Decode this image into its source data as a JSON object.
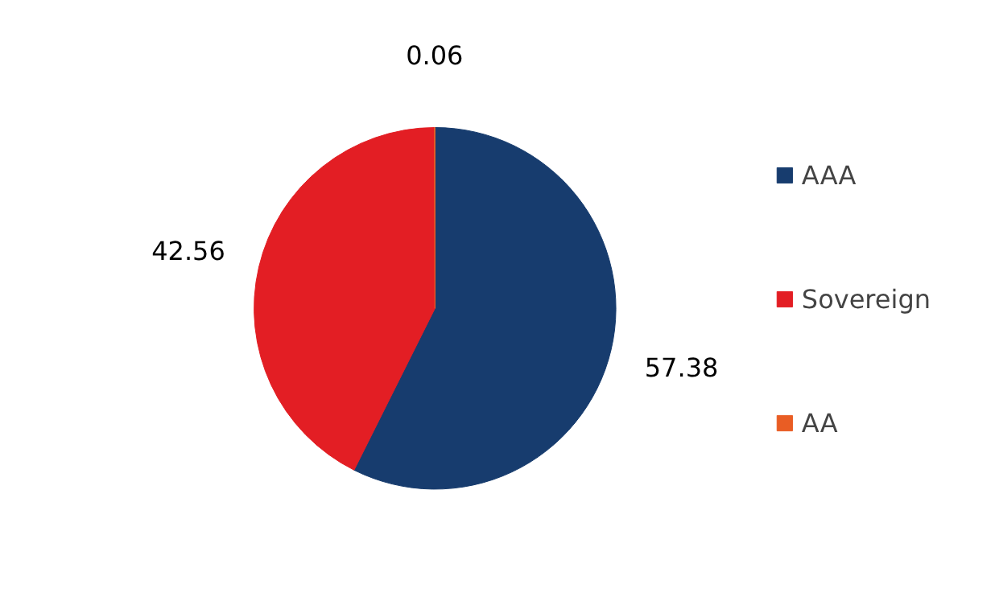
{
  "chart_data": {
    "type": "pie",
    "categories": [
      "AAA",
      "Sovereign",
      "AA"
    ],
    "values": [
      57.38,
      42.56,
      0.06
    ],
    "colors": [
      "#173c6e",
      "#e31e24",
      "#e95d24"
    ],
    "data_labels": true,
    "legend": "right"
  }
}
